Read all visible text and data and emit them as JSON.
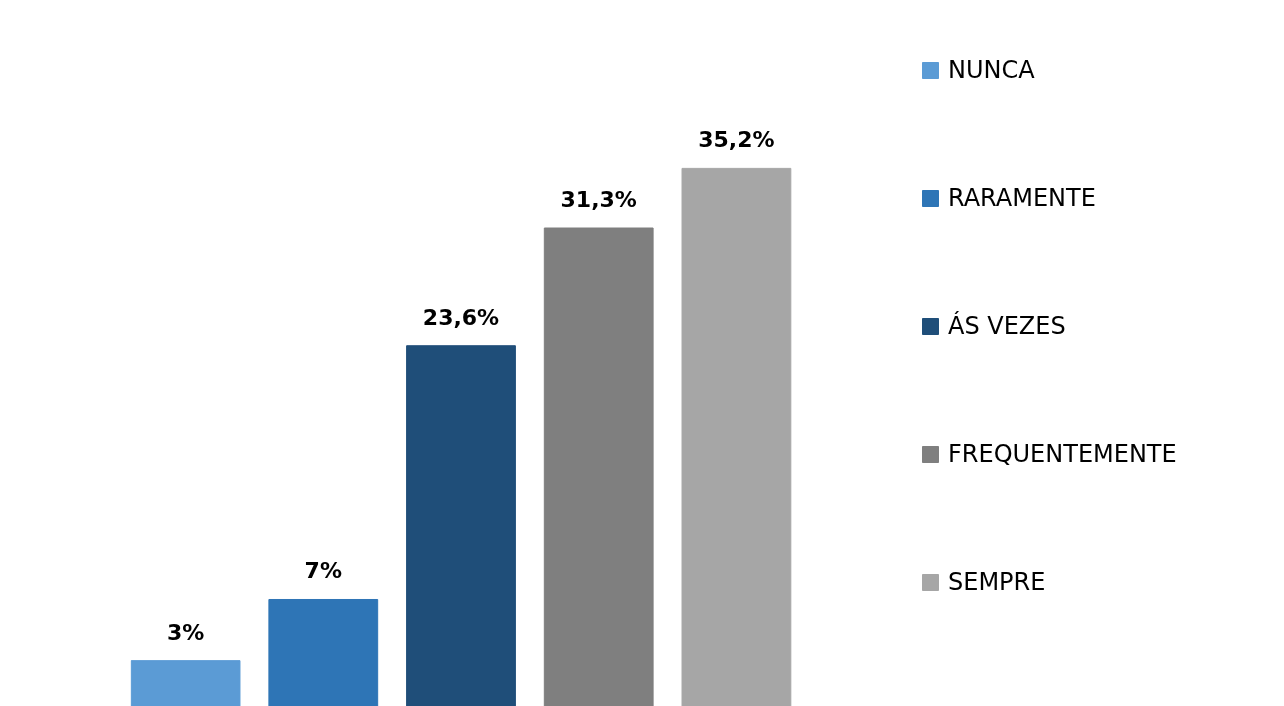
{
  "chart_data": {
    "type": "bar",
    "categories": [
      null
    ],
    "series": [
      {
        "name": "NUNCA",
        "color": "#5b9bd5",
        "values": [
          3
        ],
        "value_labels": [
          "3%"
        ]
      },
      {
        "name": "RARAMENTE",
        "color": "#2e75b6",
        "values": [
          7
        ],
        "value_labels": [
          "7%"
        ]
      },
      {
        "name": "ÁS VEZES",
        "color": "#1f4e79",
        "values": [
          23.6
        ],
        "value_labels": [
          "23,6%"
        ]
      },
      {
        "name": "FREQUENTEMENTE",
        "color": "#7f7f7f",
        "values": [
          31.3
        ],
        "value_labels": [
          "31,3%"
        ]
      },
      {
        "name": "SEMPRE",
        "color": "#a6a6a6",
        "values": [
          35.2
        ],
        "value_labels": [
          "35,2%"
        ]
      }
    ],
    "tick_labels": false,
    "grid": false,
    "legend": "right"
  }
}
